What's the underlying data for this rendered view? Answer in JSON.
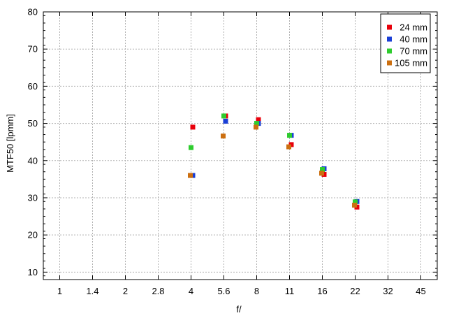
{
  "chart_data": {
    "type": "scatter",
    "xlabel": "f/",
    "ylabel": "MTF50 [lpmm]",
    "x_ticks": [
      "1",
      "1.4",
      "2",
      "2.8",
      "4",
      "5.6",
      "8",
      "11",
      "16",
      "22",
      "32",
      "45"
    ],
    "ylim": [
      8,
      80
    ],
    "y_ticks": [
      10,
      20,
      30,
      40,
      50,
      60,
      70,
      80
    ],
    "grid": true,
    "legend_position": "top-right",
    "series": [
      {
        "name": "24 mm",
        "color": "#e8000b",
        "points": [
          {
            "x": "4",
            "y": 49.0
          },
          {
            "x": "5.6",
            "y": 52.0
          },
          {
            "x": "8",
            "y": 51.0
          },
          {
            "x": "11",
            "y": 44.3
          },
          {
            "x": "16",
            "y": 36.3
          },
          {
            "x": "22",
            "y": 27.5
          }
        ]
      },
      {
        "name": "40 mm",
        "color": "#1a3fd6",
        "points": [
          {
            "x": "4",
            "y": 36.0
          },
          {
            "x": "5.6",
            "y": 50.6
          },
          {
            "x": "8",
            "y": 50.0
          },
          {
            "x": "11",
            "y": 46.8
          },
          {
            "x": "16",
            "y": 37.8
          },
          {
            "x": "22",
            "y": 29.0
          }
        ]
      },
      {
        "name": "70 mm",
        "color": "#2ecc2e",
        "points": [
          {
            "x": "4",
            "y": 43.5
          },
          {
            "x": "5.6",
            "y": 52.0
          },
          {
            "x": "8",
            "y": 50.0
          },
          {
            "x": "11",
            "y": 46.8
          },
          {
            "x": "16",
            "y": 37.6
          },
          {
            "x": "22",
            "y": 28.9
          }
        ]
      },
      {
        "name": "105 mm",
        "color": "#cc6f10",
        "points": [
          {
            "x": "4",
            "y": 36.0
          },
          {
            "x": "5.6",
            "y": 46.6
          },
          {
            "x": "8",
            "y": 49.0
          },
          {
            "x": "11",
            "y": 43.7
          },
          {
            "x": "16",
            "y": 36.6
          },
          {
            "x": "22",
            "y": 28.0
          }
        ]
      }
    ]
  }
}
